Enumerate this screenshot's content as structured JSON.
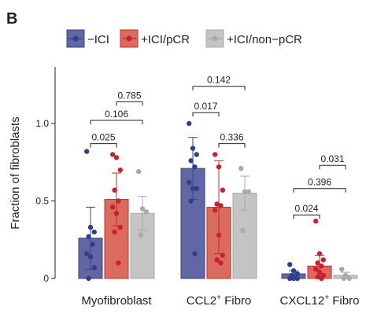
{
  "panel_label": "B",
  "chart_data": {
    "type": "bar",
    "ylabel": "Fraction of fibroblasts",
    "ylim": [
      0,
      1.2
    ],
    "yticks": [
      "0",
      "0.5",
      "1.0"
    ],
    "categories": [
      {
        "name": "Myofibroblast",
        "sup": ""
      },
      {
        "name": "CCL2",
        "sup": "+",
        "suffix": " Fibro"
      },
      {
        "name": "CXCL12",
        "sup": "+",
        "suffix": " Fibro"
      }
    ],
    "series": [
      {
        "name": "−ICI",
        "color": "#6167a4",
        "edge": "#3d4385",
        "dot": "#2f3f8f",
        "values": [
          0.26,
          0.71,
          0.03
        ],
        "errors": [
          0.2,
          0.2,
          0.02
        ],
        "points": [
          [
            0.82,
            0.33,
            0.3,
            0.27,
            0.22,
            0.16,
            0.14,
            0.07,
            0.0
          ],
          [
            1.0,
            0.84,
            0.8,
            0.76,
            0.72,
            0.62,
            0.58,
            0.58,
            0.5,
            0.16
          ],
          [
            0.09,
            0.05,
            0.03,
            0.02,
            0.01,
            0.0,
            0.0,
            0.0
          ]
        ]
      },
      {
        "name": "+ICI/pCR",
        "color": "#dc6b5e",
        "edge": "#b8342a",
        "dot": "#c42230",
        "values": [
          0.51,
          0.46,
          0.08
        ],
        "errors": [
          0.17,
          0.3,
          0.07
        ],
        "points": [
          [
            0.8,
            0.78,
            0.7,
            0.57,
            0.5,
            0.46,
            0.42,
            0.33,
            0.3,
            0.1
          ],
          [
            0.8,
            0.72,
            0.57,
            0.48,
            0.47,
            0.44,
            0.28,
            0.15,
            0.12,
            0.1
          ],
          [
            0.37,
            0.16,
            0.12,
            0.1,
            0.08,
            0.06,
            0.04,
            0.02,
            0.01,
            0.0
          ]
        ]
      },
      {
        "name": "+ICI/non−pCR",
        "color": "#c4c4c4",
        "edge": "#a9a9a9",
        "dot": "#a9a9a9",
        "values": [
          0.42,
          0.55,
          0.02
        ],
        "errors": [
          0.11,
          0.11,
          0.02
        ],
        "points": [
          [
            0.69,
            0.45,
            0.43,
            0.28
          ],
          [
            0.71,
            0.56,
            0.56,
            0.31
          ],
          [
            0.06,
            0.02,
            0.0,
            0.0
          ]
        ]
      }
    ],
    "comparisons": [
      {
        "label": "0.025",
        "group": 0,
        "from": 0,
        "to": 1,
        "y": 0.87
      },
      {
        "label": "0.106",
        "group": 0,
        "from": 0,
        "to": 2,
        "y": 1.02
      },
      {
        "label": "0.785",
        "group": 0,
        "from": 1,
        "to": 2,
        "y": 1.14
      },
      {
        "label": "0.017",
        "group": 1,
        "from": 0,
        "to": 1,
        "y": 1.07
      },
      {
        "label": "0.142",
        "group": 1,
        "from": 0,
        "to": 2,
        "y": 1.24
      },
      {
        "label": "0.336",
        "group": 1,
        "from": 1,
        "to": 2,
        "y": 0.87
      },
      {
        "label": "0.024",
        "group": 2,
        "from": 0,
        "to": 1,
        "y": 0.41
      },
      {
        "label": "0.396",
        "group": 2,
        "from": 0,
        "to": 2,
        "y": 0.58
      },
      {
        "label": "0.031",
        "group": 2,
        "from": 1,
        "to": 2,
        "y": 0.73
      }
    ]
  }
}
